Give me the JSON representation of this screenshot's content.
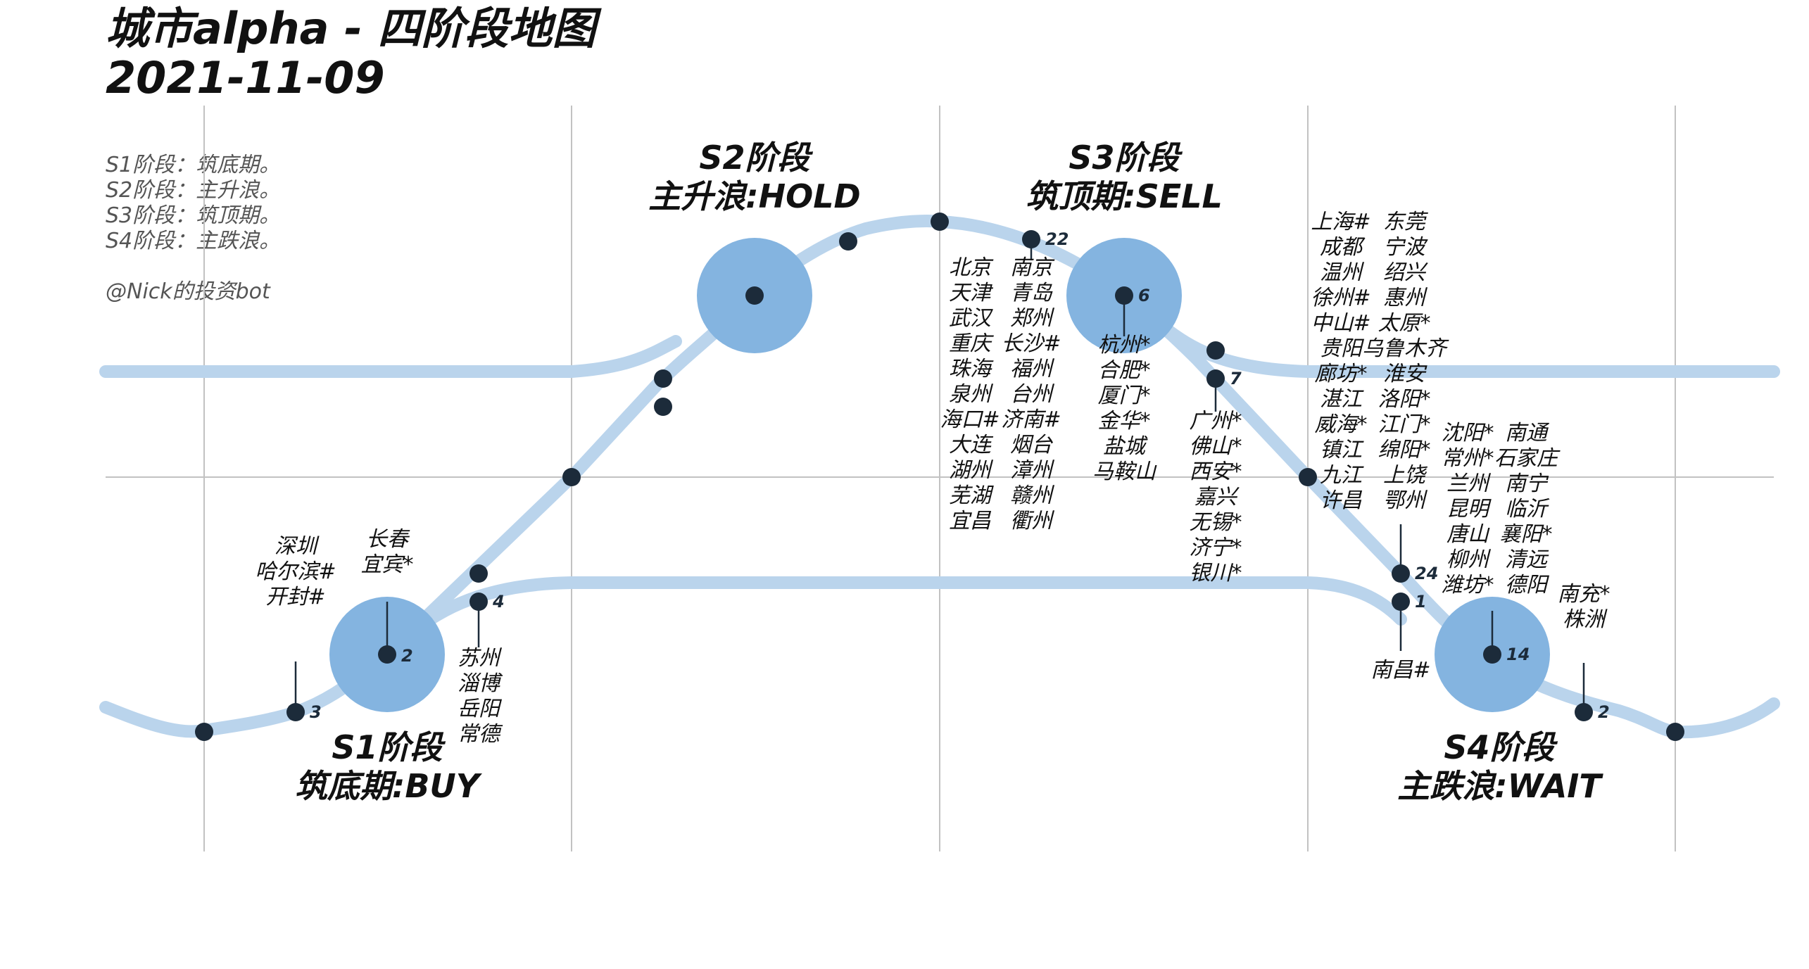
{
  "title": {
    "line1": "城市alpha - 四阶段地图",
    "line2": "2021-11-09"
  },
  "legend": {
    "lines": [
      "S1阶段：筑底期。",
      "S2阶段：主升浪。",
      "S3阶段：筑顶期。",
      "S4阶段：主跌浪。"
    ],
    "author": "@Nick的投资bot"
  },
  "stages": {
    "s1": {
      "name": "S1阶段",
      "action": "筑底期:BUY",
      "count": "2"
    },
    "s2": {
      "name": "S2阶段",
      "action": "主升浪:HOLD"
    },
    "s3": {
      "name": "S3阶段",
      "action": "筑顶期:SELL",
      "count": "6"
    },
    "s4": {
      "name": "S4阶段",
      "action": "主跌浪:WAIT",
      "count": "14"
    }
  },
  "clusters": {
    "s1_left_3": {
      "count": "3",
      "cities": [
        "深圳",
        "哈尔滨#",
        "开封#"
      ]
    },
    "s1_center": {
      "cities": [
        "长春",
        "宜宾*"
      ]
    },
    "s1_right_4": {
      "count": "4",
      "cities": [
        "苏州",
        "淄博",
        "岳阳",
        "常德"
      ]
    },
    "s2_peak_22": {
      "count": "22",
      "cities": [
        "北京",
        "南京",
        "天津",
        "青岛",
        "武汉",
        "郑州",
        "重庆",
        "长沙#",
        "珠海",
        "福州",
        "泉州",
        "台州",
        "海口#",
        "济南#",
        "大连",
        "烟台",
        "湖州",
        "漳州",
        "芜湖",
        "赣州",
        "宜昌",
        "衢州"
      ]
    },
    "s3_center": {
      "cities": [
        "杭州*",
        "合肥*",
        "厦门*",
        "金华*",
        "盐城",
        "马鞍山"
      ]
    },
    "s3_right_7": {
      "count": "7",
      "cities": [
        "广州*",
        "佛山*",
        "西安*",
        "嘉兴",
        "无锡*",
        "济宁*",
        "银川*"
      ]
    },
    "s4_left_24": {
      "count": "24",
      "cities": [
        "上海#",
        "东莞",
        "成都",
        "宁波",
        "温州",
        "绍兴",
        "徐州#",
        "惠州",
        "中山#",
        "太原*",
        "贵阳",
        "乌鲁木齐",
        "廊坊*",
        "淮安",
        "湛江",
        "洛阳*",
        "威海*",
        "江门*",
        "镇江",
        "绵阳*",
        "九江",
        "上饶",
        "许昌",
        "鄂州"
      ]
    },
    "s4_left_1": {
      "count": "1",
      "cities": [
        "南昌#"
      ]
    },
    "s4_center": {
      "cities": [
        "沈阳*",
        "南通",
        "常州*",
        "石家庄",
        "兰州",
        "南宁",
        "昆明",
        "临沂",
        "唐山",
        "襄阳*",
        "柳州",
        "清远",
        "潍坊*",
        "德阳"
      ]
    },
    "s4_right_2": {
      "count": "2",
      "cities": [
        "南充*",
        "株洲"
      ]
    }
  }
}
